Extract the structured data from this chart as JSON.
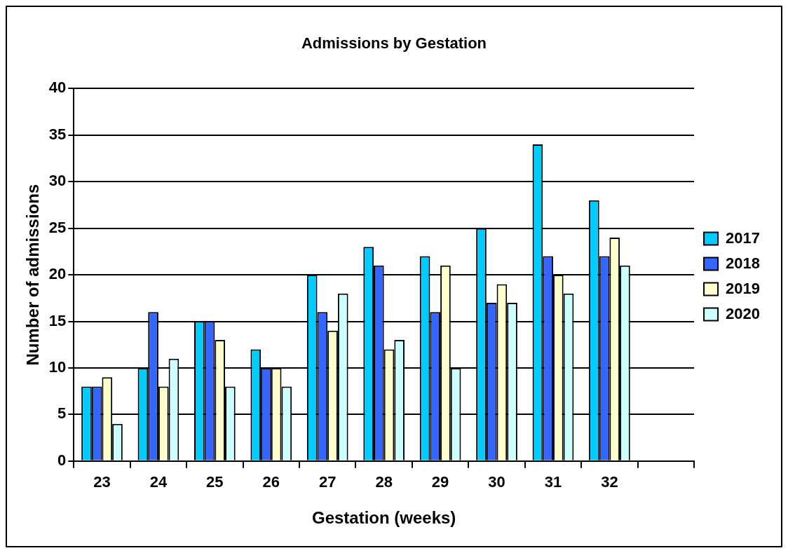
{
  "chart_data": {
    "type": "bar",
    "title": "Admissions by Gestation",
    "xlabel": "Gestation (weeks)",
    "ylabel": "Number of admissions",
    "categories": [
      "23",
      "24",
      "25",
      "26",
      "27",
      "28",
      "29",
      "30",
      "31",
      "32",
      null
    ],
    "series": [
      {
        "name": "2017",
        "color": "#00ccff",
        "values": [
          8,
          10,
          15,
          12,
          20,
          23,
          22,
          25,
          34,
          28,
          null
        ]
      },
      {
        "name": "2018",
        "color": "#3366ff",
        "values": [
          8,
          16,
          15,
          10,
          16,
          21,
          16,
          17,
          22,
          22,
          null
        ]
      },
      {
        "name": "2019",
        "color": "#ffffcc",
        "values": [
          9,
          8,
          13,
          10,
          14,
          12,
          21,
          19,
          20,
          24,
          null
        ]
      },
      {
        "name": "2020",
        "color": "#ccffff",
        "values": [
          4,
          11,
          8,
          8,
          18,
          13,
          10,
          17,
          18,
          21,
          null
        ]
      }
    ],
    "ylim": [
      0,
      40
    ],
    "yticks": [
      0,
      5,
      10,
      15,
      20,
      25,
      30,
      35,
      40
    ],
    "grid": "y",
    "legend": "right"
  }
}
